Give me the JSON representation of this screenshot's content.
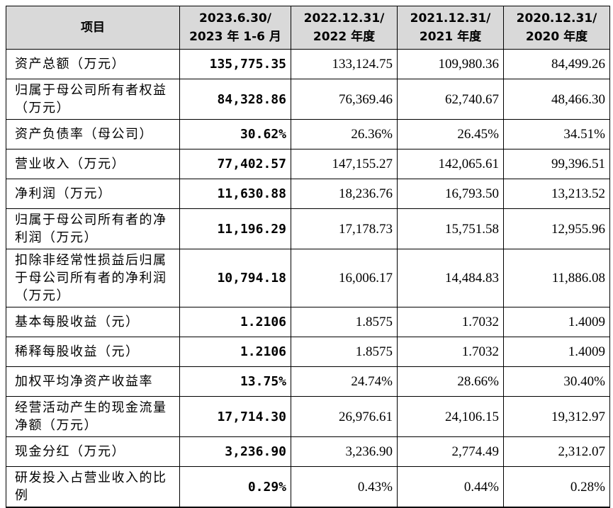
{
  "table": {
    "header": [
      [
        "项目"
      ],
      [
        "2023.6.30/",
        "2023 年 1-6 月"
      ],
      [
        "2022.12.31/",
        "2022 年度"
      ],
      [
        "2021.12.31/",
        "2021 年度"
      ],
      [
        "2020.12.31/",
        "2020 年度"
      ]
    ],
    "rows": [
      [
        "资产总额（万元）",
        "135,775.35",
        "133,124.75",
        "109,980.36",
        "84,499.26"
      ],
      [
        "归属于母公司所有者权益（万元）",
        "84,328.86",
        "76,369.46",
        "62,740.67",
        "48,466.30"
      ],
      [
        "资产负债率（母公司）",
        "30.62%",
        "26.36%",
        "26.45%",
        "34.51%"
      ],
      [
        "营业收入（万元）",
        "77,402.57",
        "147,155.27",
        "142,065.61",
        "99,396.51"
      ],
      [
        "净利润（万元）",
        "11,630.88",
        "18,236.76",
        "16,793.50",
        "13,213.52"
      ],
      [
        "归属于母公司所有者的净利润（万元）",
        "11,196.29",
        "17,178.73",
        "15,751.58",
        "12,955.96"
      ],
      [
        "扣除非经常性损益后归属于母公司所有者的净利润（万元）",
        "10,794.18",
        "16,006.17",
        "14,484.83",
        "11,886.08"
      ],
      [
        "基本每股收益（元）",
        "1.2106",
        "1.8575",
        "1.7032",
        "1.4009"
      ],
      [
        "稀释每股收益（元）",
        "1.2106",
        "1.8575",
        "1.7032",
        "1.4009"
      ],
      [
        "加权平均净资产收益率",
        "13.75%",
        "24.74%",
        "28.66%",
        "30.40%"
      ],
      [
        "经营活动产生的现金流量净额（万元）",
        "17,714.30",
        "26,976.61",
        "24,106.15",
        "19,312.97"
      ],
      [
        "现金分红（万元）",
        "3,236.90",
        "3,236.90",
        "2,774.49",
        "2,312.07"
      ],
      [
        "研发投入占营业收入的比例",
        "0.29%",
        "0.43%",
        "0.44%",
        "0.28%"
      ]
    ]
  }
}
